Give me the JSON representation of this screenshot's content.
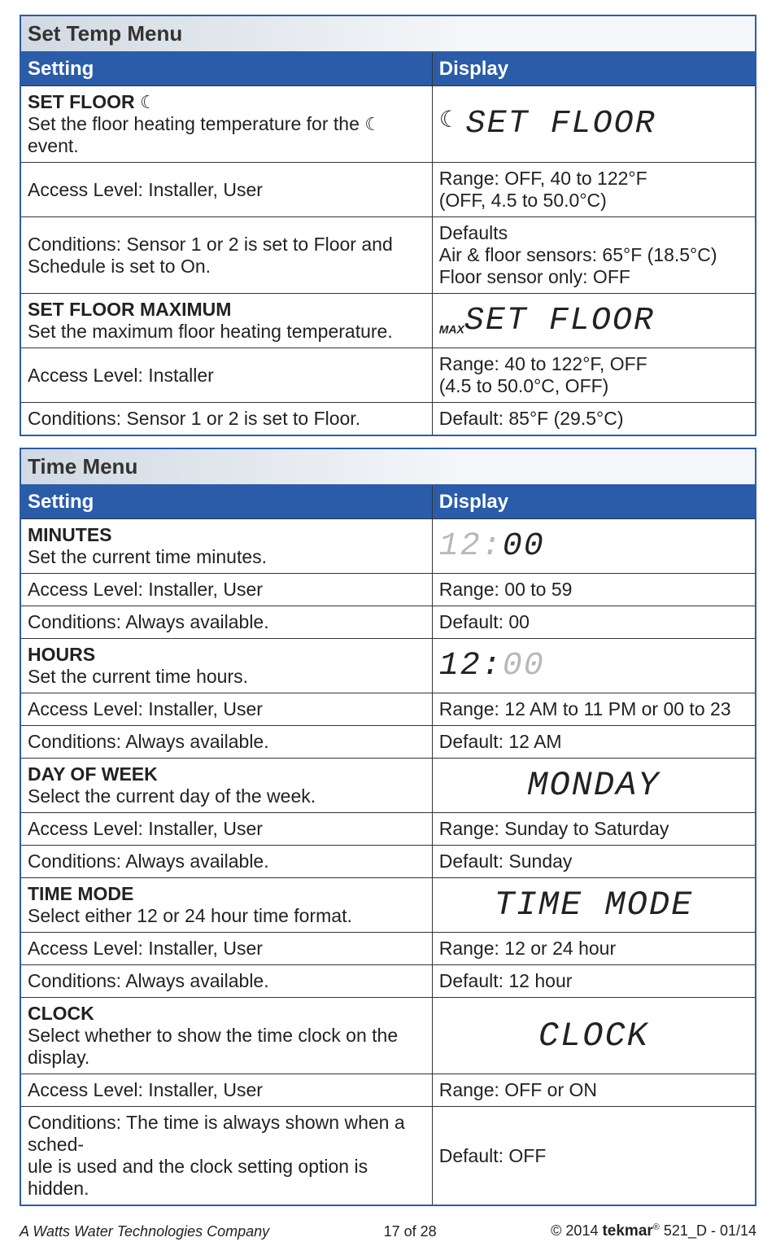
{
  "setTempMenu": {
    "title": "Set Temp Menu",
    "header": {
      "setting": "Setting",
      "display": "Display"
    },
    "rows": [
      {
        "l_bold": "SET FLOOR ",
        "l_rest": "Set the floor heating temperature for the ",
        "l_tail": " event.",
        "r_seg_prefix": "☾ ",
        "r_seg": "SET FLOOR",
        "hasMoon": true
      },
      {
        "l": "Access Level: Installer, User",
        "r1": "Range: OFF, 40 to 122°F",
        "r2": "(OFF, 4.5 to 50.0°C)"
      },
      {
        "l1": "Conditions: Sensor 1 or 2 is set to Floor and",
        "l2": "Schedule is set to On.",
        "r1": "Defaults",
        "r2": "Air & floor sensors: 65°F (18.5°C)",
        "r3": "Floor sensor only: OFF"
      },
      {
        "l_bold": "SET FLOOR MAXIMUM",
        "l_rest": "Set the maximum floor heating temperature.",
        "r_sub": "MAX",
        "r_seg": "SET FLOOR"
      },
      {
        "l": "Access Level: Installer",
        "r1": "Range: 40 to 122°F, OFF",
        "r2": "(4.5 to 50.0°C, OFF)"
      },
      {
        "l": "Conditions: Sensor 1 or 2 is set to Floor.",
        "r": "Default: 85°F (29.5°C)"
      }
    ]
  },
  "timeMenu": {
    "title": "Time Menu",
    "header": {
      "setting": "Setting",
      "display": "Display"
    },
    "rows": [
      {
        "l_bold": "MINUTES",
        "l_rest": "Set the current time minutes.",
        "r_seg_dim": "12:",
        "r_seg": "00"
      },
      {
        "l": "Access Level: Installer, User",
        "r": "Range: 00 to 59"
      },
      {
        "l": "Conditions: Always available.",
        "r": "Default: 00"
      },
      {
        "l_bold": "HOURS",
        "l_rest": "Set the current time hours.",
        "r_seg": "12:",
        "r_seg_dim": "00"
      },
      {
        "l": "Access Level: Installer, User",
        "r": "Range: 12 AM to 11 PM or 00 to 23"
      },
      {
        "l": "Conditions: Always available.",
        "r": "Default: 12 AM"
      },
      {
        "l_bold": "DAY OF WEEK",
        "l_rest": "Select the current day of the week.",
        "r_seg_center": "MONDAY"
      },
      {
        "l": "Access Level: Installer, User",
        "r": "Range: Sunday to Saturday"
      },
      {
        "l": "Conditions: Always available.",
        "r": "Default: Sunday"
      },
      {
        "l_bold": "TIME MODE",
        "l_rest": "Select either 12 or 24 hour time format.",
        "r_seg_center": "TIME MODE"
      },
      {
        "l": "Access Level: Installer, User",
        "r": "Range: 12 or 24 hour"
      },
      {
        "l": "Conditions: Always available.",
        "r": "Default: 12 hour"
      },
      {
        "l_bold": "CLOCK",
        "l_rest": "Select whether to show the time clock on the display.",
        "r_seg_center": "CLOCK"
      },
      {
        "l": "Access Level: Installer, User",
        "r": "Range: OFF or ON"
      },
      {
        "l1": "Conditions: The time is always shown when a sched-",
        "l2": "ule is used and the clock setting option is hidden.",
        "r": "Default: OFF"
      }
    ]
  },
  "footer": {
    "left": "A Watts Water Technologies Company",
    "mid": "17 of 28",
    "rightPre": "© 2014 ",
    "brand": "tekmar",
    "rightPost": " 521_D - 01/14"
  }
}
